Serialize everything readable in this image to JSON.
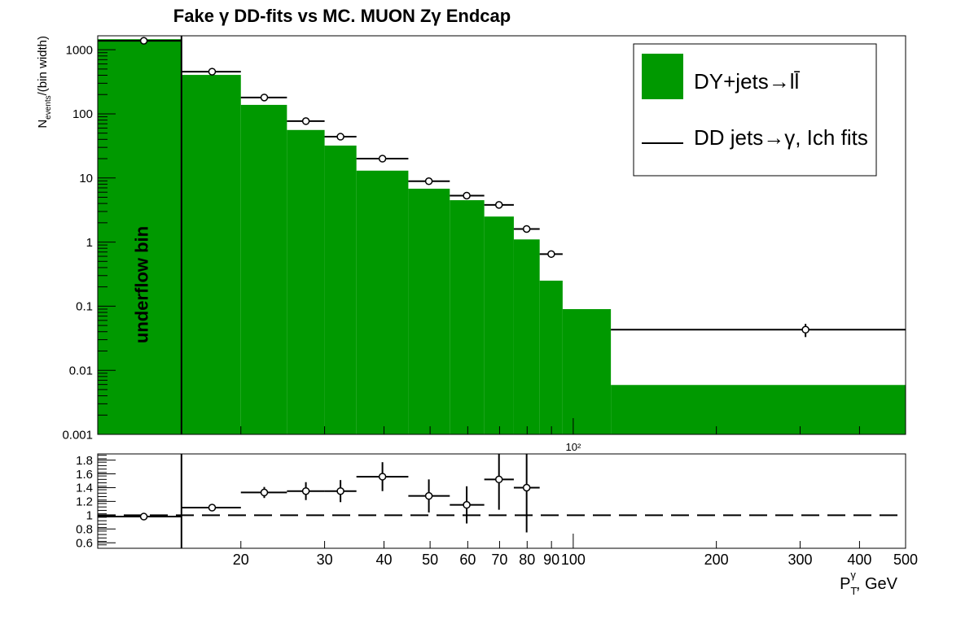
{
  "chart_data": [
    {
      "type": "histogram",
      "title": "Fake γ DD-fits vs MC. MUON Zγ  Endcap",
      "ylabel": [
        "N",
        "events",
        "/(bin width)"
      ],
      "annotation": "underflow bin",
      "xscale": "log",
      "yscale": "log",
      "xlim": [
        10,
        500
      ],
      "ylim": [
        0.001,
        1650
      ],
      "yticks": [
        0.001,
        0.01,
        0.1,
        1,
        10,
        100,
        1000
      ],
      "xticks": [
        {
          "value": 100,
          "label": "10²"
        }
      ],
      "bins": [
        10,
        15,
        20,
        25,
        30,
        35,
        45,
        55,
        65,
        75,
        85,
        95,
        120,
        500
      ],
      "legend": "upper right",
      "series": [
        {
          "name": "DY+jets→ll̄",
          "color": "#009900",
          "values": [
            1460,
            405,
            138,
            56,
            32,
            13,
            6.8,
            4.5,
            2.5,
            1.1,
            0.25,
            0.09,
            0.0059
          ]
        },
        {
          "name": "DD jets→γ, Ich fits",
          "color": "#000000",
          "x": [
            12.5,
            17.4,
            22.4,
            27.4,
            32.4,
            39.7,
            49.7,
            59.7,
            69.8,
            79.8,
            89.9,
            null,
            308
          ],
          "values": [
            1380,
            455,
            180,
            77,
            44,
            20,
            8.9,
            5.3,
            3.8,
            1.6,
            0.65,
            null,
            0.043
          ],
          "errors": [
            20,
            10,
            5,
            3,
            2,
            1,
            0.5,
            0.3,
            0.25,
            0.15,
            0.08,
            null,
            0.01
          ]
        }
      ]
    },
    {
      "type": "ratio",
      "xlabel": [
        "P",
        "T",
        "γ",
        ", GeV"
      ],
      "xscale": "log",
      "xlim": [
        10,
        500
      ],
      "ylim": [
        0.52,
        1.89
      ],
      "yticks": [
        0.6,
        0.8,
        1,
        1.2,
        1.4,
        1.6,
        1.8
      ],
      "xticks": [
        20,
        30,
        40,
        50,
        60,
        70,
        80,
        90,
        100,
        200,
        300,
        400,
        500
      ],
      "bins": [
        10,
        15,
        20,
        25,
        30,
        35,
        45,
        55,
        65,
        75,
        85,
        95,
        120,
        500
      ],
      "reference": 1,
      "series": [
        {
          "name": "ratio",
          "color": "#000000",
          "x": [
            12.5,
            17.4,
            22.4,
            27.4,
            32.4,
            39.7,
            49.7,
            59.7,
            69.8,
            79.8,
            null,
            null,
            null
          ],
          "values": [
            0.98,
            1.11,
            1.33,
            1.35,
            1.35,
            1.56,
            1.28,
            1.15,
            1.52,
            1.4,
            null,
            null,
            null
          ],
          "errors": [
            0.01,
            0.01,
            0.08,
            0.13,
            0.16,
            0.21,
            0.24,
            0.27,
            0.44,
            0.65,
            null,
            null,
            null
          ]
        }
      ]
    }
  ]
}
